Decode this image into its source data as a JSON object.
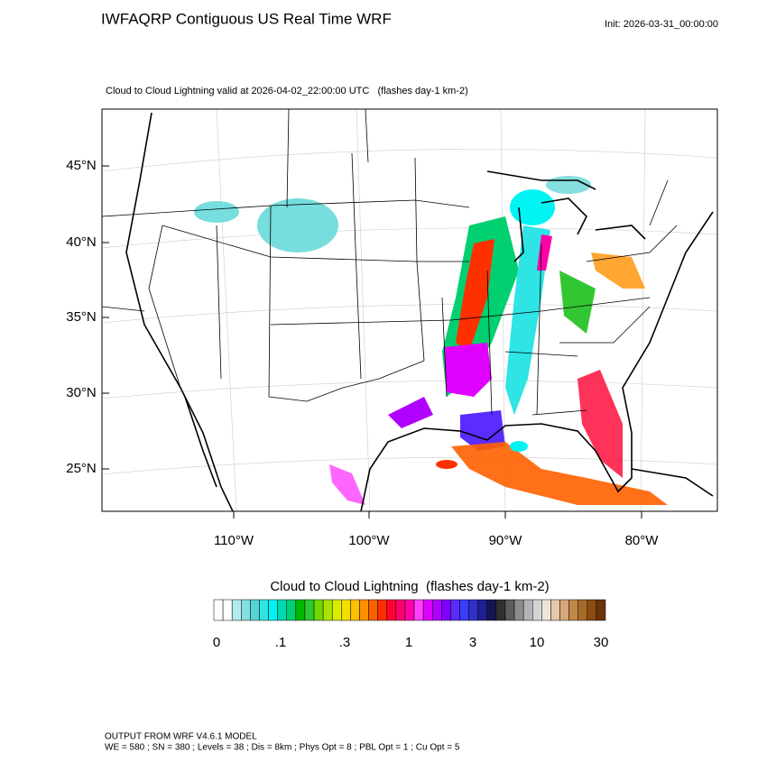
{
  "header": {
    "title": "IWFAQRP Contiguous US Real Time WRF",
    "init": "Init: 2026-03-31_00:00:00",
    "subtitle": "Cloud to Cloud Lightning valid at 2026-04-02_22:00:00 UTC   (flashes day-1 km-2)"
  },
  "map": {
    "lat_labels": [
      "45°N",
      "40°N",
      "35°N",
      "30°N",
      "25°N"
    ],
    "lon_labels": [
      "110°W",
      "100°W",
      "90°W",
      "80°W"
    ]
  },
  "colorbar": {
    "title": "Cloud to Cloud Lightning  (flashes day-1 km-2)",
    "labels": [
      "0",
      ".1",
      ".3",
      "1",
      "3",
      "10",
      "30"
    ],
    "colors": [
      "#ffffff",
      "#ffffff",
      "#b4ecec",
      "#86dede",
      "#55d4d4",
      "#2ee4e4",
      "#00f4f4",
      "#00d8b0",
      "#00d070",
      "#00b800",
      "#30c830",
      "#70d800",
      "#a8e400",
      "#d8ec00",
      "#f0e000",
      "#ffc000",
      "#ff9000",
      "#ff6000",
      "#ff3000",
      "#ff0030",
      "#ff0070",
      "#ff00a8",
      "#ff40ff",
      "#e000ff",
      "#b000ff",
      "#8000ff",
      "#5a2cff",
      "#3c3cff",
      "#3030c8",
      "#202090",
      "#141450",
      "#303030",
      "#5c5c5c",
      "#8c8c8c",
      "#b4b4b4",
      "#d4d4d4",
      "#f0e4d8",
      "#e4c8a8",
      "#d4a878",
      "#c08848",
      "#a86828",
      "#8c4c14",
      "#6c3408"
    ]
  },
  "footer": {
    "line1": "OUTPUT FROM WRF V4.6.1 MODEL",
    "line2": "WE = 580 ; SN = 380 ; Levels = 38 ; Dis = 8km ; Phys Opt = 8 ; PBL Opt = 1 ; Cu Opt = 5"
  }
}
